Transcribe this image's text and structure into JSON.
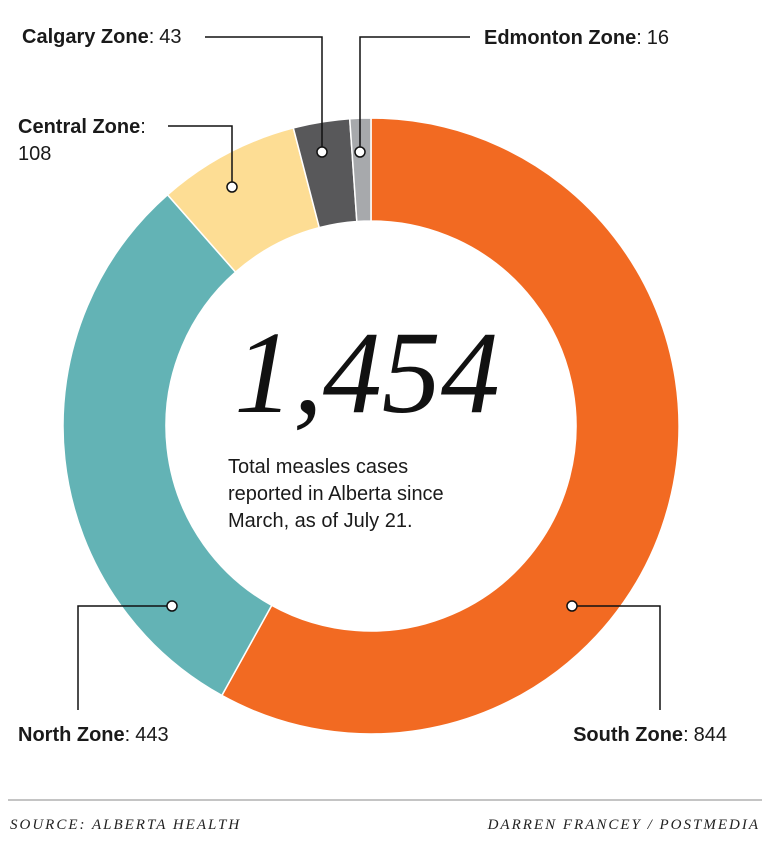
{
  "chart_data": {
    "type": "donut",
    "categories": [
      "South Zone",
      "North Zone",
      "Central Zone",
      "Calgary Zone",
      "Edmonton Zone"
    ],
    "values": [
      844,
      443,
      108,
      43,
      16
    ],
    "colors": [
      "#f26a22",
      "#63b3b5",
      "#fddd94",
      "#58585a",
      "#a7a9ac"
    ],
    "label_separator": ":",
    "center_label": "1,454",
    "annotation": [
      "Total measles cases",
      "reported in Alberta since",
      "March, as of July 21."
    ],
    "source": "SOURCE: ALBERTA HEALTH",
    "credit": "DARREN FRANCEY / POSTMEDIA"
  }
}
